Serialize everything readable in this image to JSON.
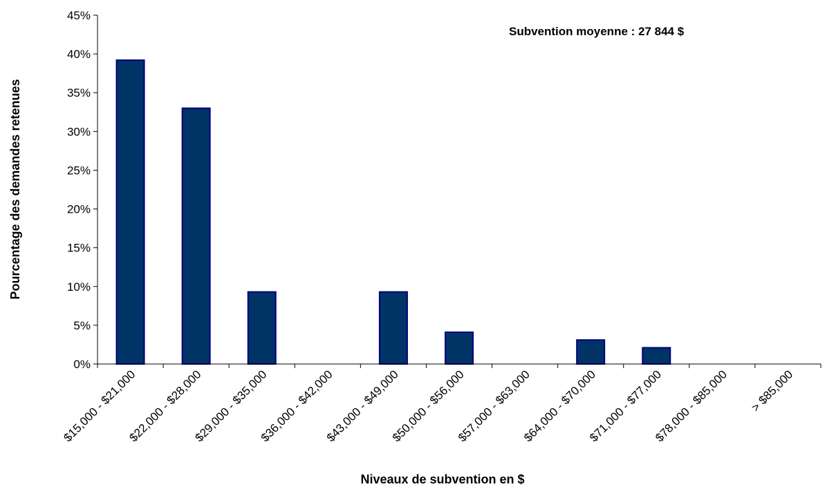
{
  "chart_data": {
    "type": "bar",
    "title": "",
    "annotation": "Subvention moyenne : 27 844 $",
    "xlabel": "Niveaux de subvention en $",
    "ylabel": "Pourcentage des demandes retenues",
    "categories": [
      "$15,000 - $21,000",
      "$22,000 - $28,000",
      "$29,000 - $35,000",
      "$36,000 - $42,000",
      "$43,000 - $49,000",
      "$50,000 - $56,000",
      "$57,000 - $63,000",
      "$64,000 - $70,000",
      "$71,000 - $77,000",
      "$78,000 - $85,000",
      "> $85,000"
    ],
    "values": [
      39.2,
      33.0,
      9.3,
      0,
      9.3,
      4.1,
      0,
      3.1,
      2.1,
      0,
      0
    ],
    "ylim": [
      0,
      45
    ],
    "yticks": [
      0,
      5,
      10,
      15,
      20,
      25,
      30,
      35,
      40,
      45
    ],
    "ytick_labels": [
      "0%",
      "5%",
      "10%",
      "15%",
      "20%",
      "25%",
      "30%",
      "35%",
      "40%",
      "45%"
    ],
    "grid": false,
    "legend": "none",
    "bar_color": "#003366",
    "bar_edge_color": "#000080"
  }
}
